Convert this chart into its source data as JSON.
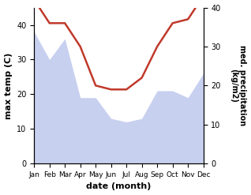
{
  "months": [
    "Jan",
    "Feb",
    "Mar",
    "Apr",
    "May",
    "Jun",
    "Jul",
    "Aug",
    "Sep",
    "Oct",
    "Nov",
    "Dec"
  ],
  "precipitation": [
    42,
    36,
    36,
    30,
    20,
    19,
    19,
    22,
    30,
    36,
    37,
    43
  ],
  "max_temp": [
    38,
    30,
    36,
    19,
    19,
    13,
    12,
    13,
    21,
    21,
    19,
    26
  ],
  "temp_color": "#c0392b",
  "precip_fill_color": "#c8d0f0",
  "ylabel_left": "max temp (C)",
  "ylabel_right": "med. precipitation\n(kg/m2)",
  "xlabel": "date (month)",
  "ylim_left": [
    0,
    45
  ],
  "ylim_right": [
    0,
    40
  ],
  "yticks_left": [
    0,
    10,
    20,
    30,
    40
  ],
  "yticks_right": [
    0,
    10,
    20,
    30,
    40
  ],
  "background_color": "#ffffff"
}
